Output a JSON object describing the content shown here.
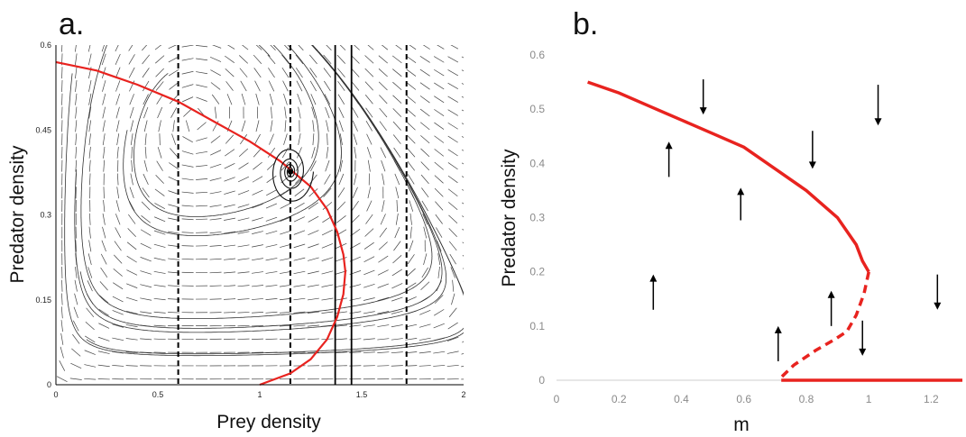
{
  "chart_data": [
    {
      "panel_label": "a.",
      "type": "line",
      "xlabel": "Prey density",
      "ylabel": "Predator density",
      "xlim": [
        0,
        2
      ],
      "ylim": [
        0,
        0.6
      ],
      "x_ticks": [
        "0",
        "0.5",
        "1",
        "1.5",
        "2"
      ],
      "y_ticks": [
        "0",
        "0.15",
        "0.3",
        "0.45",
        "0.6"
      ],
      "grid": false,
      "background": "vector-field",
      "predator_nullcline": {
        "color": "#e8231f",
        "points": [
          [
            0.0,
            0.57
          ],
          [
            0.2,
            0.555
          ],
          [
            0.4,
            0.53
          ],
          [
            0.6,
            0.5
          ],
          [
            0.8,
            0.46
          ],
          [
            0.95,
            0.43
          ],
          [
            1.1,
            0.395
          ],
          [
            1.15,
            0.38
          ],
          [
            1.25,
            0.35
          ],
          [
            1.33,
            0.31
          ],
          [
            1.38,
            0.27
          ],
          [
            1.41,
            0.23
          ],
          [
            1.42,
            0.2
          ],
          [
            1.41,
            0.16
          ],
          [
            1.38,
            0.12
          ],
          [
            1.33,
            0.08
          ],
          [
            1.25,
            0.045
          ],
          [
            1.15,
            0.02
          ],
          [
            1.0,
            0.0
          ]
        ]
      },
      "dashed_vertical_lines_x": [
        0.6,
        1.15,
        1.72
      ],
      "solid_vertical_lines_x": [
        1.37,
        1.45
      ],
      "equilibrium": [
        1.15,
        0.37
      ]
    },
    {
      "panel_label": "b.",
      "type": "line",
      "xlabel": "m",
      "ylabel": "Predator density",
      "xlim": [
        0,
        1.3
      ],
      "ylim": [
        0,
        0.6
      ],
      "x_ticks": [
        "0",
        "0.2",
        "0.4",
        "0.6",
        "0.8",
        "1",
        "1.2"
      ],
      "y_ticks": [
        "0",
        "0.1",
        "0.2",
        "0.3",
        "0.4",
        "0.5",
        "0.6"
      ],
      "grid": false,
      "series": [
        {
          "style": "solid",
          "color": "#e8231f",
          "points": [
            [
              0.1,
              0.55
            ],
            [
              0.2,
              0.53
            ],
            [
              0.3,
              0.505
            ],
            [
              0.4,
              0.48
            ],
            [
              0.5,
              0.455
            ],
            [
              0.6,
              0.43
            ],
            [
              0.7,
              0.39
            ],
            [
              0.8,
              0.35
            ],
            [
              0.9,
              0.3
            ],
            [
              0.96,
              0.25
            ],
            [
              0.98,
              0.22
            ],
            [
              1.0,
              0.2
            ]
          ]
        },
        {
          "style": "dashed",
          "color": "#e8231f",
          "points": [
            [
              1.0,
              0.2
            ],
            [
              0.985,
              0.16
            ],
            [
              0.96,
              0.12
            ],
            [
              0.93,
              0.09
            ],
            [
              0.89,
              0.075
            ],
            [
              0.83,
              0.055
            ],
            [
              0.76,
              0.028
            ],
            [
              0.71,
              0.0
            ]
          ]
        },
        {
          "style": "solid",
          "color": "#e8231f",
          "points": [
            [
              0.72,
              0.0
            ],
            [
              1.3,
              0.0
            ]
          ]
        }
      ],
      "arrows": [
        {
          "x": 0.47,
          "y_from": 0.555,
          "y_to": 0.49,
          "direction": "down"
        },
        {
          "x": 1.03,
          "y_from": 0.545,
          "y_to": 0.47,
          "direction": "down"
        },
        {
          "x": 0.82,
          "y_from": 0.46,
          "y_to": 0.39,
          "direction": "down"
        },
        {
          "x": 0.36,
          "y_from": 0.375,
          "y_to": 0.44,
          "direction": "up"
        },
        {
          "x": 0.59,
          "y_from": 0.295,
          "y_to": 0.355,
          "direction": "up"
        },
        {
          "x": 0.31,
          "y_from": 0.13,
          "y_to": 0.195,
          "direction": "up"
        },
        {
          "x": 0.88,
          "y_from": 0.1,
          "y_to": 0.165,
          "direction": "up"
        },
        {
          "x": 0.71,
          "y_from": 0.035,
          "y_to": 0.1,
          "direction": "up"
        },
        {
          "x": 0.98,
          "y_from": 0.11,
          "y_to": 0.045,
          "direction": "down"
        },
        {
          "x": 1.22,
          "y_from": 0.195,
          "y_to": 0.13,
          "direction": "down"
        }
      ]
    }
  ]
}
